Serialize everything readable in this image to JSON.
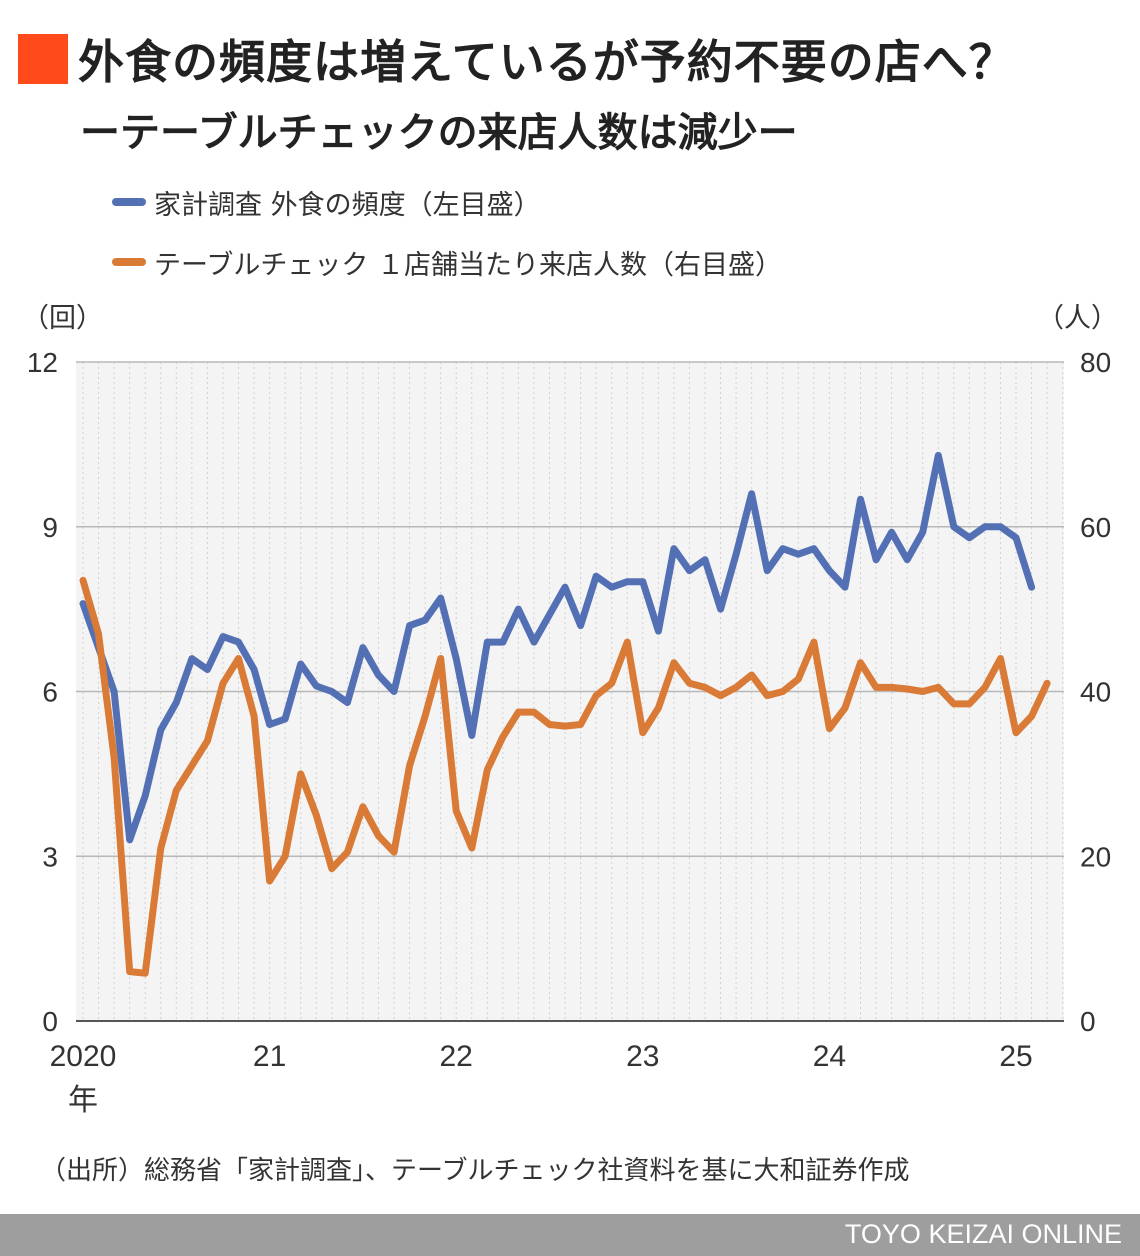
{
  "title": "外食の頻度は増えているが予約不要の店へ？",
  "subtitle": "ーテーブルチェックの来店人数は減少ー",
  "legend": [
    {
      "label": "家計調査 外食の頻度（左目盛）",
      "color": "#5470b4"
    },
    {
      "label": "テーブルチェック １店舗当たり来店人数（右目盛）",
      "color": "#d97b36"
    }
  ],
  "y_unit_left": "（回）",
  "y_unit_right": "（人）",
  "source": "（出所）総務省「家計調査」、テーブルチェック社資料を基に大和証券作成",
  "footer": "TOYO KEIZAI ONLINE",
  "chart_data": {
    "type": "line",
    "title": "外食の頻度は増えているが予約不要の店へ？",
    "x_unit": "month",
    "x_start": "2020-01",
    "x_tick_labels": [
      "2020",
      "21",
      "22",
      "23",
      "24",
      "25"
    ],
    "x_tick_sublabel": "年",
    "y_left": {
      "label": "（回）",
      "range": [
        0,
        12
      ],
      "ticks": [
        0,
        3,
        6,
        9,
        12
      ]
    },
    "y_right": {
      "label": "（人）",
      "range": [
        0,
        80
      ],
      "ticks": [
        0,
        20,
        40,
        60,
        80
      ]
    },
    "grid": true,
    "legend_position": "top-left",
    "series": [
      {
        "name": "家計調査 外食の頻度（左目盛）",
        "axis": "left",
        "color": "#5470b4",
        "x_start": "2020-01",
        "values": [
          7.6,
          6.8,
          6.0,
          3.3,
          4.1,
          5.3,
          5.8,
          6.6,
          6.4,
          7.0,
          6.9,
          6.4,
          5.4,
          5.5,
          6.5,
          6.1,
          6.0,
          5.8,
          6.8,
          6.3,
          6.0,
          7.2,
          7.3,
          7.7,
          6.6,
          5.2,
          6.9,
          6.9,
          7.5,
          6.9,
          7.4,
          7.9,
          7.2,
          8.1,
          7.9,
          8.0,
          8.0,
          7.1,
          8.6,
          8.2,
          8.4,
          7.5,
          8.5,
          9.6,
          8.2,
          8.6,
          8.5,
          8.6,
          8.2,
          7.9,
          9.5,
          8.4,
          8.9,
          8.4,
          8.9,
          10.3,
          9.0,
          8.8,
          9.0,
          9.0,
          8.8,
          7.9
        ]
      },
      {
        "name": "テーブルチェック １店舗当たり来店人数（右目盛）",
        "axis": "right",
        "color": "#d97b36",
        "x_start": "2020-01",
        "values": [
          53.5,
          47.0,
          32.0,
          6.0,
          5.8,
          21.0,
          28.0,
          31.0,
          34.0,
          41.0,
          44.0,
          37.0,
          17.0,
          20.0,
          30.0,
          25.0,
          18.5,
          20.5,
          26.0,
          22.5,
          20.5,
          31.0,
          37.0,
          44.0,
          25.5,
          21.0,
          30.5,
          34.5,
          37.5,
          37.5,
          36.0,
          35.8,
          36.0,
          39.5,
          41.0,
          46.0,
          35.0,
          38.0,
          43.5,
          41.0,
          40.5,
          39.5,
          40.5,
          42.0,
          39.5,
          40.0,
          41.5,
          46.0,
          35.5,
          38.0,
          43.5,
          40.5,
          40.5,
          40.3,
          40.0,
          40.5,
          38.5,
          38.5,
          40.5,
          44.0,
          35.0,
          37.0,
          41.0
        ]
      }
    ]
  }
}
